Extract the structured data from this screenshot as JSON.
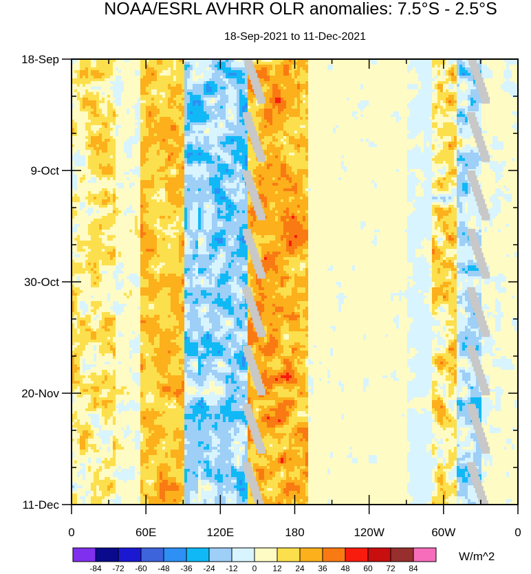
{
  "chart_data": {
    "type": "heatmap",
    "title": "NOAA/ESRL AVHRR OLR anomalies: 7.5°S - 2.5°S",
    "subtitle": "18-Sep-2021 to 11-Dec-2021",
    "xlabel": "",
    "ylabel": "",
    "x_ticks": [
      {
        "lon": 0,
        "label": "0"
      },
      {
        "lon": 60,
        "label": "60E"
      },
      {
        "lon": 120,
        "label": "120E"
      },
      {
        "lon": 180,
        "label": "180"
      },
      {
        "lon": 240,
        "label": "120W"
      },
      {
        "lon": 300,
        "label": "60W"
      },
      {
        "lon": 360,
        "label": "0"
      }
    ],
    "x_range": [
      0,
      360
    ],
    "y_ticks": [
      {
        "day": 0,
        "label": "18-Sep"
      },
      {
        "day": 21,
        "label": "9-Oct"
      },
      {
        "day": 42,
        "label": "30-Oct"
      },
      {
        "day": 63,
        "label": "20-Nov"
      },
      {
        "day": 84,
        "label": "11-Dec"
      }
    ],
    "y_range_days": [
      0,
      84
    ],
    "colorbar": {
      "unit": "W/m^2",
      "levels": [
        -84,
        -72,
        -60,
        -48,
        -36,
        -24,
        -12,
        0,
        12,
        24,
        36,
        48,
        60,
        72,
        84
      ],
      "colors": [
        "#7f30ee",
        "#0a0a8c",
        "#1a18d0",
        "#3e64dc",
        "#2e8ff5",
        "#10b9f5",
        "#9ecff7",
        "#d8f4fe",
        "#fffbc4",
        "#fcdf4c",
        "#fbb01c",
        "#f97a13",
        "#f81c0f",
        "#c80e0e",
        "#962f2e",
        "#f76dbb"
      ]
    },
    "bands": [
      {
        "region": "0-35E",
        "mean": 12,
        "variability": 30
      },
      {
        "region": "35-55E",
        "mean": 3,
        "variability": 15
      },
      {
        "region": "55-90E",
        "mean": 24,
        "variability": 24
      },
      {
        "region": "90-140E",
        "mean": -18,
        "variability": 34
      },
      {
        "region": "140-190E",
        "mean": 28,
        "variability": 30
      },
      {
        "region": "190-270E",
        "mean": 4,
        "variability": 8
      },
      {
        "region": "270-290E",
        "mean": -2,
        "variability": 8
      },
      {
        "region": "290-310E",
        "mean": 14,
        "variability": 38
      },
      {
        "region": "310-330E",
        "mean": -12,
        "variability": 34
      },
      {
        "region": "330-360E",
        "mean": 2,
        "variability": 10
      }
    ],
    "missing_data": "diagonal grey streaks near 135-160E and 320-340E"
  }
}
